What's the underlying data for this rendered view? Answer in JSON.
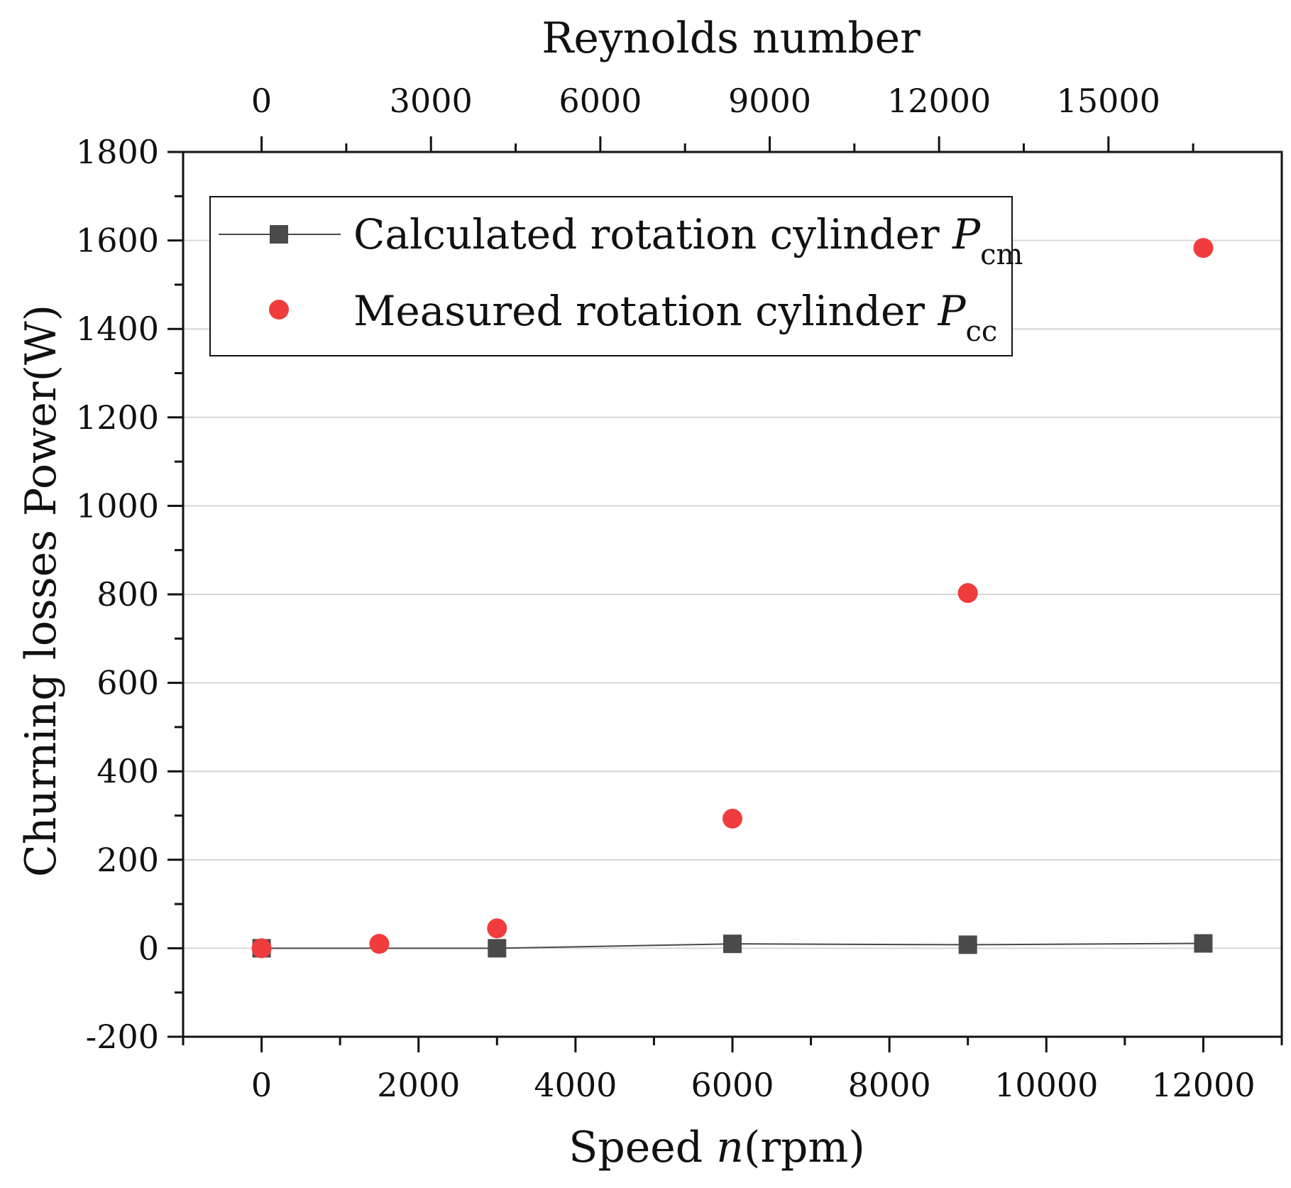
{
  "chart_data": {
    "type": "line",
    "xlabel": {
      "prefix": "Speed ",
      "var": "n",
      "suffix": "(rpm)"
    },
    "ylabel": "Churning losses Power(W)",
    "x2label": "Reynolds number",
    "xlim": [
      -1000,
      13000
    ],
    "ylim": [
      -200,
      1800
    ],
    "x2lim": [
      -1390,
      18070
    ],
    "x_ticks": [
      0,
      2000,
      4000,
      6000,
      8000,
      10000,
      12000
    ],
    "x_tick_labels": [
      "0",
      "2000",
      "4000",
      "6000",
      "8000",
      "10000",
      "12000"
    ],
    "y_ticks": [
      -200,
      0,
      200,
      400,
      600,
      800,
      1000,
      1200,
      1400,
      1600,
      1800
    ],
    "y_tick_labels": [
      "-200",
      "0",
      "200",
      "400",
      "600",
      "800",
      "1000",
      "1200",
      "1400",
      "1600",
      "1800"
    ],
    "x2_ticks": [
      0,
      3000,
      6000,
      9000,
      12000,
      15000
    ],
    "x2_tick_labels": [
      "0",
      "3000",
      "6000",
      "9000",
      "12000",
      "15000"
    ],
    "grid": "horizontal",
    "legend_position": "top-left",
    "series": [
      {
        "name": "Calculated rotation cylinder",
        "symbol": "P",
        "subscript": "cm",
        "marker": "square",
        "line": true,
        "color": "#4a4a4a",
        "x": [
          0,
          3000,
          6000,
          9000,
          12000
        ],
        "y": [
          0,
          0,
          10,
          8,
          11
        ]
      },
      {
        "name": "Measured rotation cylinder",
        "symbol": "P",
        "subscript": "cc",
        "marker": "circle",
        "line": false,
        "color": "#f03c3c",
        "x": [
          0,
          1500,
          3000,
          6000,
          9000,
          12000
        ],
        "y": [
          0,
          10,
          45,
          293,
          803,
          1583
        ]
      }
    ]
  }
}
